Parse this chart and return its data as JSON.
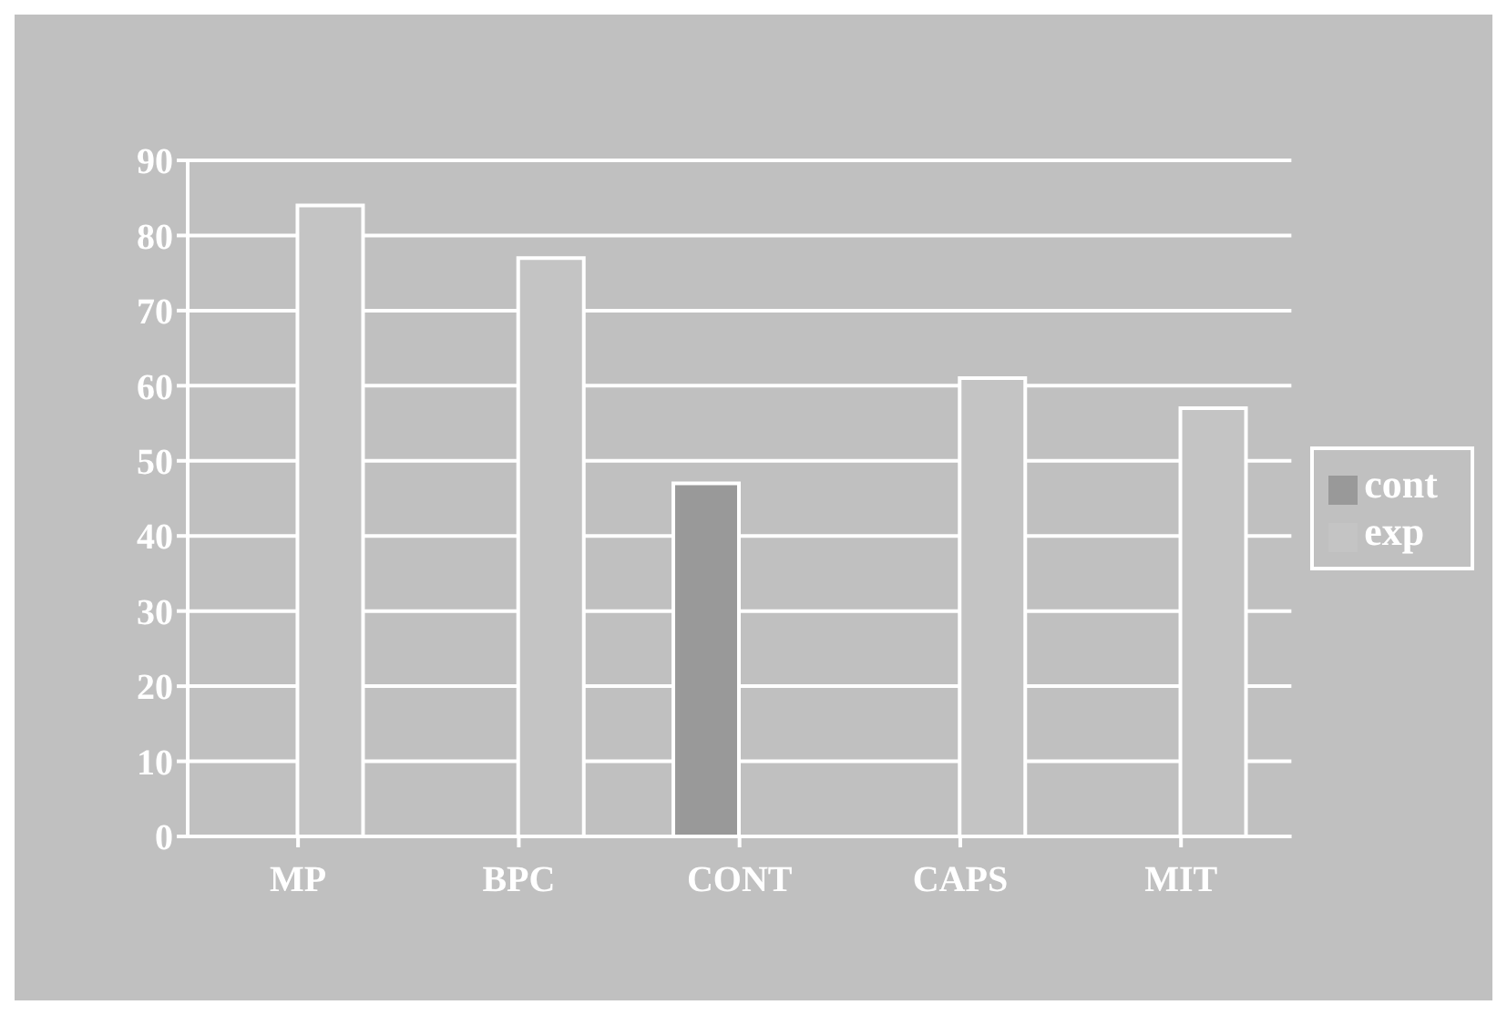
{
  "chart_data": {
    "type": "bar",
    "categories": [
      "MP",
      "BPC",
      "CONT",
      "CAPS",
      "MIT"
    ],
    "series": [
      {
        "name": "cont",
        "color": "#999999",
        "values": [
          null,
          null,
          47,
          null,
          null
        ]
      },
      {
        "name": "exp",
        "color": "#c4c4c4",
        "values": [
          84,
          77,
          null,
          61,
          57
        ]
      }
    ],
    "ylim": [
      0,
      90
    ],
    "yticks": [
      0,
      10,
      20,
      30,
      40,
      50,
      60,
      70,
      80,
      90
    ],
    "grid": "y",
    "legend": "right"
  }
}
